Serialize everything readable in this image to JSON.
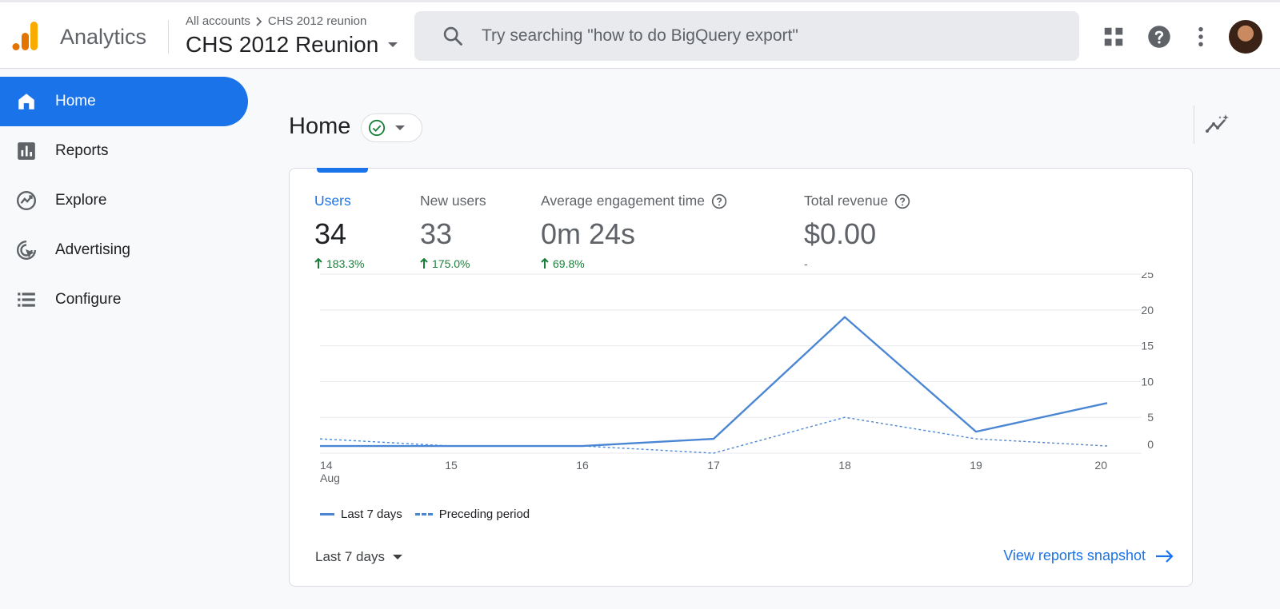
{
  "header": {
    "app_name": "Analytics",
    "breadcrumb_root": "All accounts",
    "breadcrumb_account": "CHS 2012 reunion",
    "property_name": "CHS 2012 Reunion",
    "search_placeholder": "Try searching \"how to do BigQuery export\""
  },
  "sidebar": {
    "items": [
      {
        "label": "Home",
        "icon": "home-icon",
        "active": true
      },
      {
        "label": "Reports",
        "icon": "bar-chart-icon"
      },
      {
        "label": "Explore",
        "icon": "explore-icon"
      },
      {
        "label": "Advertising",
        "icon": "advertising-icon"
      },
      {
        "label": "Configure",
        "icon": "list-icon"
      }
    ]
  },
  "page": {
    "title": "Home"
  },
  "metrics": [
    {
      "label": "Users",
      "value": "34",
      "change": "183.3%"
    },
    {
      "label": "New users",
      "value": "33",
      "change": "175.0%"
    },
    {
      "label": "Average engagement time",
      "value": "0m 24s",
      "change": "69.8%"
    },
    {
      "label": "Total revenue",
      "value": "$0.00",
      "change": "-"
    }
  ],
  "chart_data": {
    "type": "line",
    "x": [
      "14",
      "15",
      "16",
      "17",
      "18",
      "19",
      "20"
    ],
    "x_sub": [
      "Aug",
      "",
      "",
      "",
      "",
      "",
      ""
    ],
    "ylim": [
      0,
      25
    ],
    "yticks": [
      0,
      5,
      10,
      15,
      20,
      25
    ],
    "series": [
      {
        "name": "Last 7 days",
        "values": [
          1,
          1,
          1,
          2,
          19,
          3,
          7
        ],
        "style": "solid"
      },
      {
        "name": "Preceding period",
        "values": [
          2,
          1,
          1,
          0,
          5,
          2,
          1
        ],
        "style": "dashed"
      }
    ],
    "color": "#4a86d4"
  },
  "footer": {
    "date_range": "Last 7 days",
    "link": "View reports snapshot"
  }
}
